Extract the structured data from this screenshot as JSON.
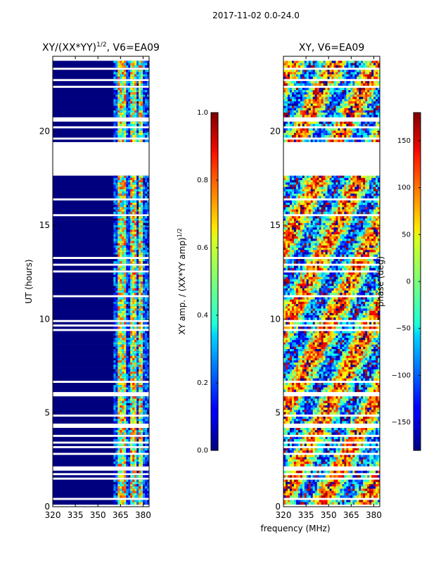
{
  "suptitle": "2017-11-02 0.0-24.0",
  "xlabel_shared": "frequency (MHz)",
  "chart_data": [
    {
      "type": "heatmap",
      "title": "XY/(XX*YY)",
      "title_sup": "1/2",
      "title_suffix": ", V6=EA09",
      "ylabel": "UT (hours)",
      "xlim": [
        320,
        384
      ],
      "ylim": [
        0,
        24
      ],
      "xticks": [
        320,
        335,
        350,
        365,
        380
      ],
      "yticks": [
        0,
        5,
        10,
        15,
        20
      ],
      "gap_hours": [
        [
          17.6,
          19.4
        ]
      ],
      "high_band_mhz": [
        [
          363,
          369
        ],
        [
          372,
          375
        ],
        [
          377,
          380
        ]
      ],
      "colorbar": {
        "label": "XY amp. / (XX*YY amp)",
        "label_sup": "1/2",
        "range": [
          0.0,
          1.0
        ],
        "ticks": [
          "0.0",
          "0.2",
          "0.4",
          "0.6",
          "0.8",
          "1.0"
        ],
        "tick_values": [
          0.0,
          0.2,
          0.4,
          0.6,
          0.8,
          1.0
        ]
      }
    },
    {
      "type": "heatmap",
      "title": "XY, V6=EA09",
      "xlim": [
        320,
        384
      ],
      "ylim": [
        0,
        24
      ],
      "xticks": [
        320,
        335,
        350,
        365,
        380
      ],
      "yticks": [
        0,
        5,
        10,
        15,
        20
      ],
      "gap_hours": [
        [
          17.6,
          19.4
        ]
      ],
      "colorbar": {
        "label": "phase (deg)",
        "range": [
          -180,
          180
        ],
        "ticks": [
          "−150",
          "−100",
          "−50",
          "0",
          "50",
          "100",
          "150"
        ],
        "tick_values": [
          -150,
          -100,
          -50,
          0,
          50,
          100,
          150
        ]
      }
    }
  ]
}
